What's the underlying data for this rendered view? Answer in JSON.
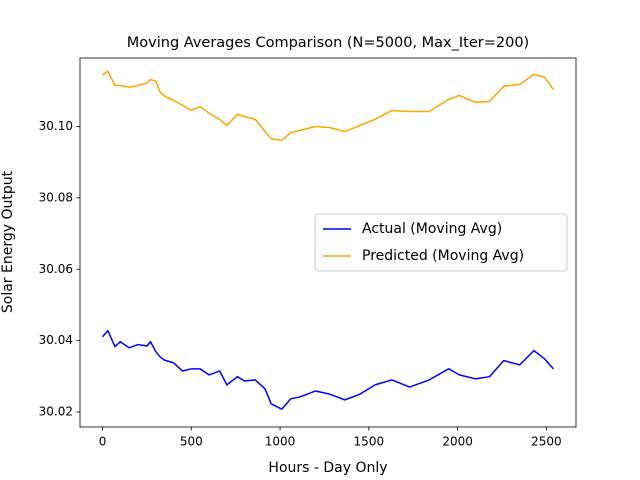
{
  "chart_data": {
    "type": "line",
    "title": "Moving Averages Comparison (N=5000, Max_Iter=200)",
    "xlabel": "Hours - Day Only",
    "ylabel": "Solar Energy Output",
    "x": [
      0,
      30,
      70,
      100,
      150,
      200,
      250,
      270,
      300,
      325,
      350,
      400,
      450,
      500,
      550,
      600,
      660,
      700,
      760,
      800,
      860,
      915,
      950,
      1010,
      1060,
      1110,
      1200,
      1280,
      1365,
      1450,
      1535,
      1630,
      1730,
      1840,
      1950,
      2010,
      2100,
      2180,
      2260,
      2350,
      2430,
      2490,
      2540
    ],
    "series": [
      {
        "name": "Actual (Moving Avg)",
        "color": "#0000ff",
        "values": [
          30.0411,
          30.0428,
          30.0383,
          30.0397,
          30.038,
          30.0389,
          30.0385,
          30.0397,
          30.0369,
          30.0354,
          30.0345,
          30.0338,
          30.0315,
          30.0321,
          30.0321,
          30.0304,
          30.0315,
          30.0276,
          30.0299,
          30.0287,
          30.029,
          30.0265,
          30.0223,
          30.0208,
          30.0237,
          30.0242,
          30.0259,
          30.025,
          30.0234,
          30.025,
          30.0276,
          30.029,
          30.027,
          30.029,
          30.0321,
          30.0304,
          30.0293,
          30.0299,
          30.0344,
          30.0332,
          30.0372,
          30.0349,
          30.0321
        ]
      },
      {
        "name": "Predicted (Moving Avg)",
        "color": "#ffa500",
        "values": [
          30.1144,
          30.1155,
          30.1115,
          30.1115,
          30.111,
          30.1115,
          30.1122,
          30.1132,
          30.1127,
          30.1096,
          30.1085,
          30.1073,
          30.106,
          30.1045,
          30.1056,
          30.1037,
          30.102,
          30.1003,
          30.1034,
          30.1028,
          30.102,
          30.0986,
          30.0966,
          30.0961,
          30.0983,
          30.0989,
          30.1,
          30.0997,
          30.0986,
          30.1003,
          30.102,
          30.1045,
          30.1042,
          30.1042,
          30.1076,
          30.1087,
          30.1068,
          30.107,
          30.1113,
          30.1118,
          30.1146,
          30.1138,
          30.1104
        ]
      }
    ],
    "xlim": [
      -127,
      2667
    ],
    "ylim": [
      30.0158,
      30.1192
    ],
    "xticks": [
      0,
      500,
      1000,
      1500,
      2000,
      2500
    ],
    "yticks": [
      30.02,
      30.04,
      30.06,
      30.08,
      {
        "value": 30.1,
        "label": "30.10"
      }
    ],
    "grid": false,
    "legend": "center right"
  }
}
